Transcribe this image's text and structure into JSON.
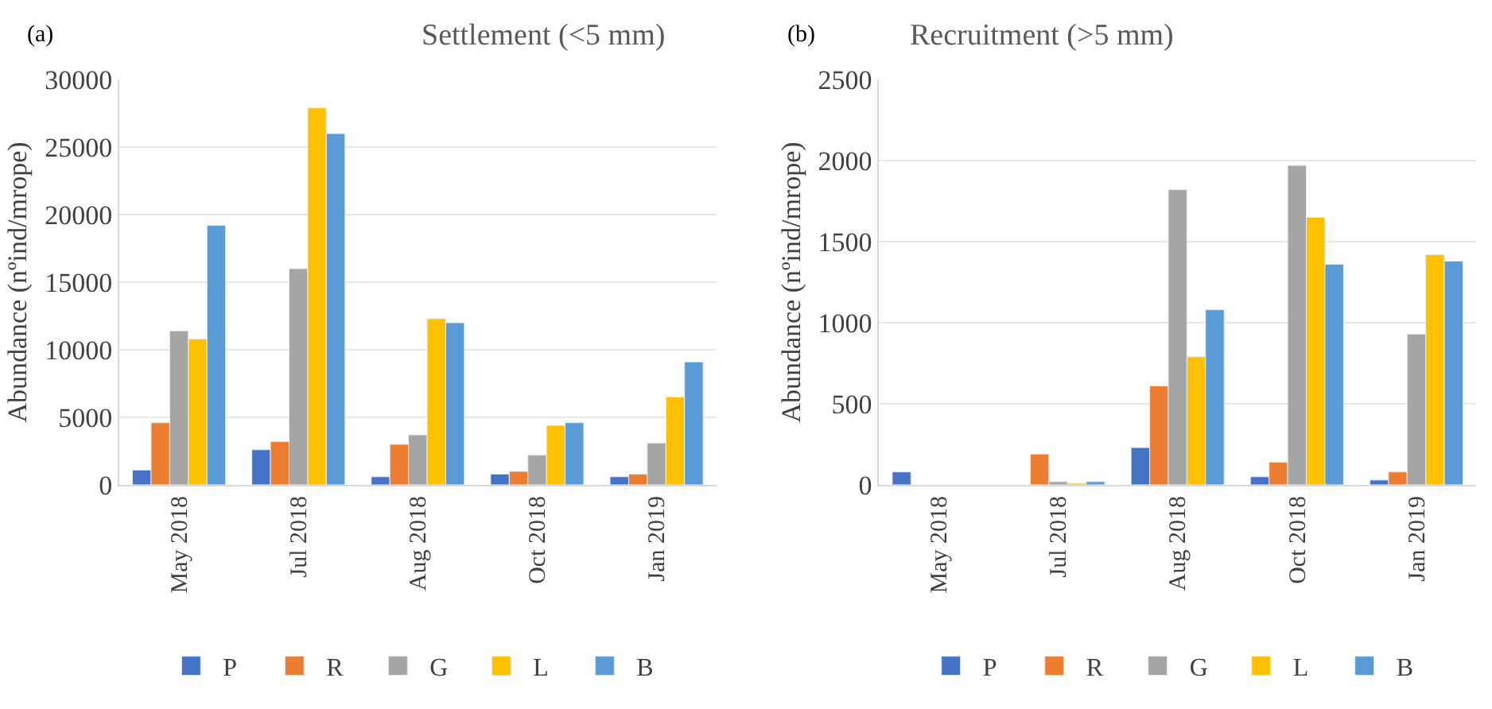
{
  "chart_data": [
    {
      "type": "bar",
      "title": "Settlement (<5 mm)",
      "ylabel": "Abundance (nºind/mrope)",
      "annotations": [
        "(a)"
      ],
      "categories": [
        "May 2018",
        "Jul 2018",
        "Aug 2018",
        "Oct 2018",
        "Jan 2019"
      ],
      "series": [
        {
          "name": "P",
          "color": "#4472c4",
          "values": [
            1100,
            2600,
            600,
            800,
            600
          ]
        },
        {
          "name": "R",
          "color": "#ed7d31",
          "values": [
            4600,
            3200,
            3000,
            1000,
            800
          ]
        },
        {
          "name": "G",
          "color": "#a5a5a5",
          "values": [
            11400,
            16000,
            3700,
            2200,
            3100
          ]
        },
        {
          "name": "L",
          "color": "#ffc000",
          "values": [
            10800,
            27900,
            12300,
            4400,
            6500
          ]
        },
        {
          "name": "B",
          "color": "#5b9bd5",
          "values": [
            19200,
            26000,
            12000,
            4600,
            9100
          ]
        }
      ],
      "ylim": [
        0,
        30000
      ],
      "yticks": [
        0,
        5000,
        10000,
        15000,
        20000,
        25000,
        30000
      ],
      "grid": "y",
      "legend": "bottom"
    },
    {
      "type": "bar",
      "title": "Recruitment (>5 mm)",
      "ylabel": "Abundance (nºind/mrope)",
      "annotations": [
        "(b)"
      ],
      "categories": [
        "May 2018",
        "Jul 2018",
        "Aug 2018",
        "Oct 2018",
        "Jan 2019"
      ],
      "series": [
        {
          "name": "P",
          "color": "#4472c4",
          "values": [
            80,
            null,
            230,
            50,
            30
          ]
        },
        {
          "name": "R",
          "color": "#ed7d31",
          "values": [
            null,
            190,
            610,
            140,
            80
          ]
        },
        {
          "name": "G",
          "color": "#a5a5a5",
          "values": [
            null,
            20,
            1820,
            1970,
            930
          ]
        },
        {
          "name": "L",
          "color": "#ffc000",
          "values": [
            null,
            10,
            790,
            1650,
            1420
          ]
        },
        {
          "name": "B",
          "color": "#5b9bd5",
          "values": [
            null,
            20,
            1080,
            1360,
            1380
          ]
        }
      ],
      "ylim": [
        0,
        2500
      ],
      "yticks": [
        0,
        500,
        1000,
        1500,
        2000,
        2500
      ],
      "grid": "y",
      "legend": "bottom"
    }
  ]
}
